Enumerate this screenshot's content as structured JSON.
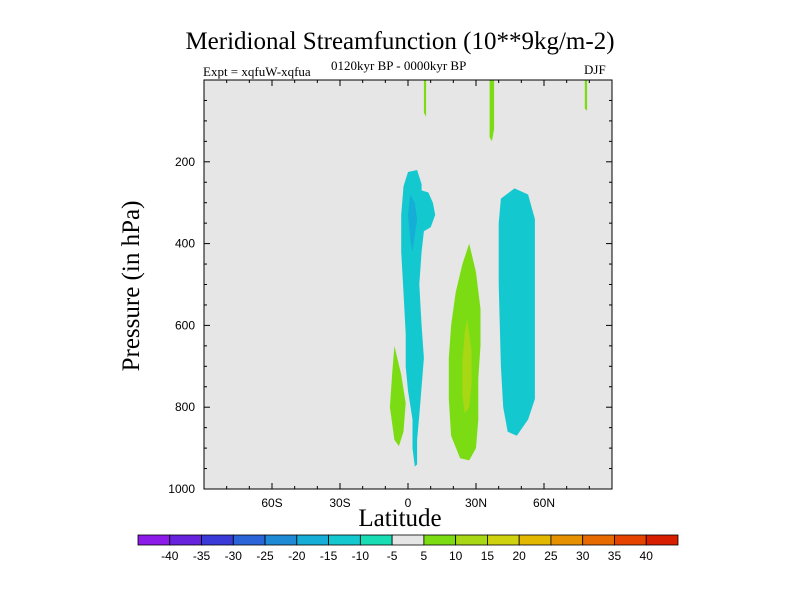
{
  "chart_data": {
    "type": "heatmap",
    "title": "Meridional Streamfunction (10**9kg/m-2)",
    "left_subtitle": "Expt = xqfuW-xqfua",
    "center_subtitle": "0120kyr BP - 0000kyr BP",
    "right_subtitle": "DJF",
    "xlabel": "Latitude",
    "ylabel": "Pressure (in hPa)",
    "xlim": [
      -90,
      90
    ],
    "ylim": [
      1000,
      0
    ],
    "x_ticks": [
      {
        "value": -60,
        "label": "60S"
      },
      {
        "value": -30,
        "label": "30S"
      },
      {
        "value": 0,
        "label": "0"
      },
      {
        "value": 30,
        "label": "30N"
      },
      {
        "value": 60,
        "label": "60N"
      }
    ],
    "y_ticks": [
      {
        "value": 200,
        "label": "200"
      },
      {
        "value": 400,
        "label": "400"
      },
      {
        "value": 600,
        "label": "600"
      },
      {
        "value": 800,
        "label": "800"
      },
      {
        "value": 1000,
        "label": "1000"
      }
    ],
    "background_color": "#e6e6e6",
    "colorbar": {
      "labels": [
        "-40",
        "-35",
        "-30",
        "-25",
        "-20",
        "-15",
        "-10",
        "-5",
        "5",
        "10",
        "15",
        "20",
        "25",
        "30",
        "35",
        "40"
      ],
      "colors": [
        "#8c1ae8",
        "#6622dd",
        "#3a3ad8",
        "#2b63d8",
        "#1e8ad6",
        "#14aed6",
        "#14c8d0",
        "#18dcb4",
        "#e6e6e6",
        "#7cdc14",
        "#a8d814",
        "#cfd20e",
        "#e2b800",
        "#e69200",
        "#e66a00",
        "#e64200",
        "#d81e00"
      ]
    },
    "regions": [
      {
        "name": "neg-column-tropics",
        "value": -10,
        "points": [
          [
            4,
            220
          ],
          [
            6,
            255
          ],
          [
            6,
            270
          ],
          [
            9,
            275
          ],
          [
            11,
            300
          ],
          [
            12,
            330
          ],
          [
            10,
            360
          ],
          [
            7,
            370
          ],
          [
            6,
            420
          ],
          [
            5,
            500
          ],
          [
            6,
            600
          ],
          [
            7,
            680
          ],
          [
            6,
            750
          ],
          [
            5,
            820
          ],
          [
            4,
            880
          ],
          [
            4,
            940
          ],
          [
            3,
            945
          ],
          [
            2,
            900
          ],
          [
            2,
            830
          ],
          [
            0,
            760
          ],
          [
            -1,
            700
          ],
          [
            -1,
            620
          ],
          [
            -2,
            520
          ],
          [
            -3,
            420
          ],
          [
            -3,
            330
          ],
          [
            -2,
            260
          ],
          [
            0,
            225
          ]
        ]
      },
      {
        "name": "neg-core-tropics",
        "value": -15,
        "points": [
          [
            1,
            280
          ],
          [
            3,
            300
          ],
          [
            4,
            340
          ],
          [
            3,
            380
          ],
          [
            2,
            420
          ],
          [
            1,
            390
          ],
          [
            0,
            330
          ]
        ]
      },
      {
        "name": "neg-streak-midlat",
        "value": -10,
        "points": [
          [
            41,
            290
          ],
          [
            47,
            265
          ],
          [
            53,
            280
          ],
          [
            56,
            340
          ],
          [
            56,
            500
          ],
          [
            56,
            700
          ],
          [
            56,
            780
          ],
          [
            53,
            830
          ],
          [
            48,
            870
          ],
          [
            44,
            860
          ],
          [
            42,
            800
          ],
          [
            41,
            700
          ],
          [
            40,
            500
          ],
          [
            40,
            350
          ]
        ]
      },
      {
        "name": "pos-cell-south",
        "value": 5,
        "points": [
          [
            -6,
            650
          ],
          [
            -3,
            720
          ],
          [
            -1,
            790
          ],
          [
            -2,
            860
          ],
          [
            -4,
            895
          ],
          [
            -6,
            880
          ],
          [
            -8,
            800
          ],
          [
            -7,
            720
          ]
        ]
      },
      {
        "name": "pos-cell-north",
        "value": 5,
        "points": [
          [
            27,
            400
          ],
          [
            30,
            470
          ],
          [
            32,
            560
          ],
          [
            32,
            650
          ],
          [
            31,
            730
          ],
          [
            31,
            830
          ],
          [
            30,
            900
          ],
          [
            27,
            930
          ],
          [
            23,
            925
          ],
          [
            19,
            870
          ],
          [
            18,
            780
          ],
          [
            18,
            680
          ],
          [
            19,
            600
          ],
          [
            21,
            520
          ],
          [
            24,
            450
          ]
        ]
      },
      {
        "name": "pos-core-north",
        "value": 10,
        "points": [
          [
            26,
            585
          ],
          [
            28,
            660
          ],
          [
            28,
            740
          ],
          [
            27,
            800
          ],
          [
            25,
            815
          ],
          [
            24,
            770
          ],
          [
            24,
            690
          ],
          [
            25,
            620
          ]
        ]
      },
      {
        "name": "pos-streak-top-1",
        "value": 5,
        "points": [
          [
            7,
            0
          ],
          [
            8,
            0
          ],
          [
            8,
            60
          ],
          [
            8,
            90
          ],
          [
            7,
            80
          ]
        ]
      },
      {
        "name": "pos-streak-top-2",
        "value": 5,
        "points": [
          [
            36,
            0
          ],
          [
            38,
            0
          ],
          [
            38,
            120
          ],
          [
            37,
            150
          ],
          [
            36,
            140
          ]
        ]
      },
      {
        "name": "pos-streak-top-3",
        "value": 5,
        "points": [
          [
            78,
            0
          ],
          [
            79,
            0
          ],
          [
            79,
            75
          ],
          [
            78,
            70
          ]
        ]
      }
    ]
  }
}
